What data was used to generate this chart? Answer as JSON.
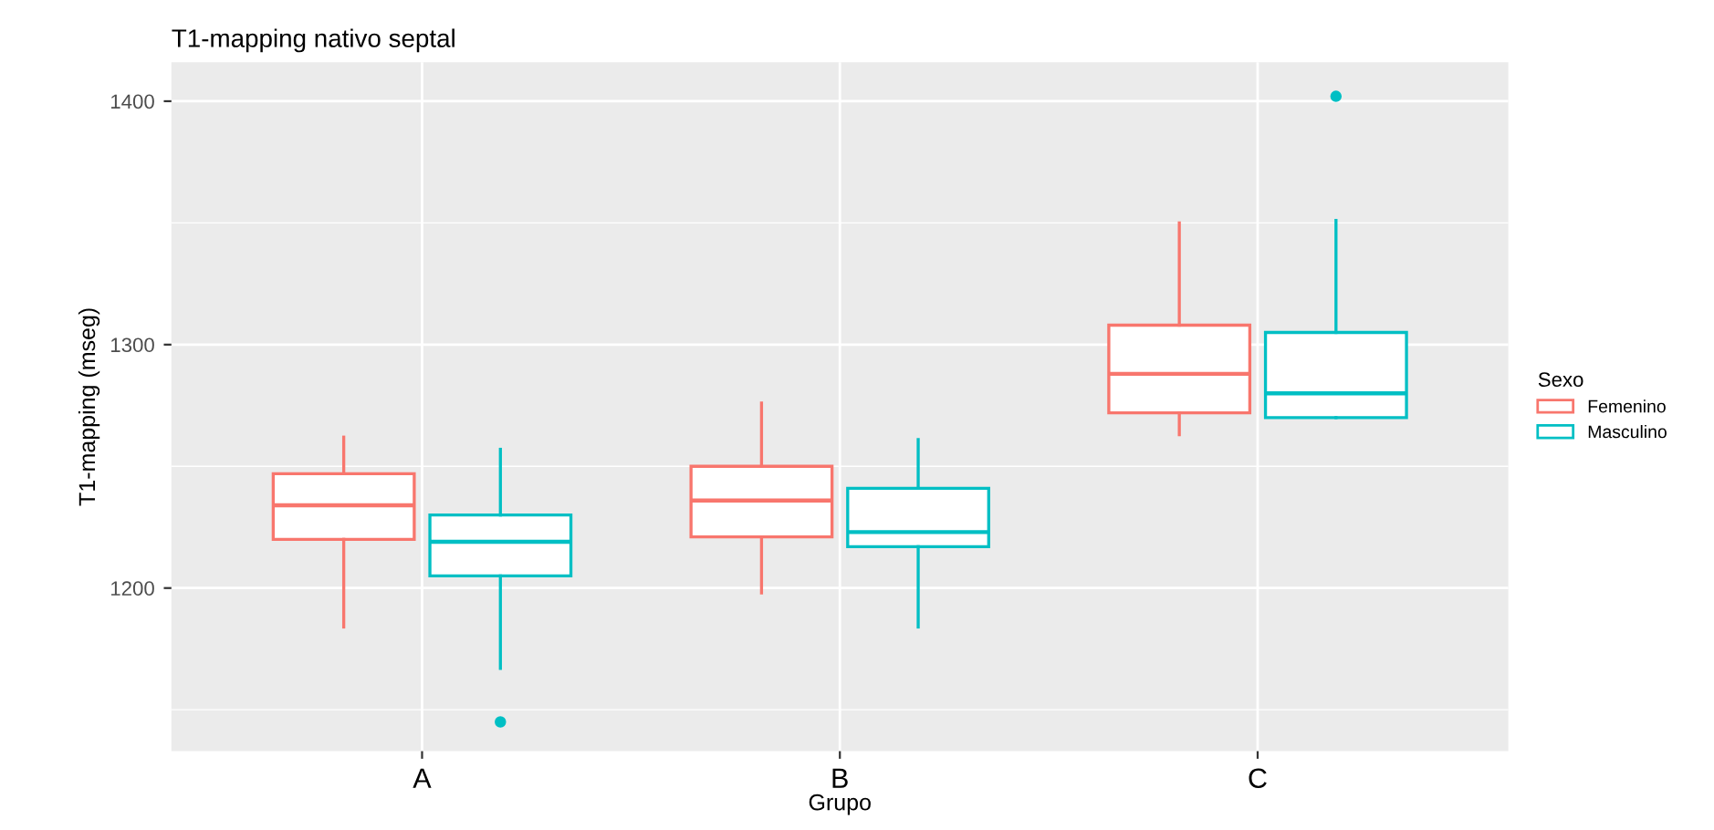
{
  "chart_data": {
    "type": "box",
    "title": "T1-mapping nativo septal",
    "xlabel": "Grupo",
    "ylabel": "T1-mapping (mseg)",
    "legend_title": "Sexo",
    "categories": [
      "A",
      "B",
      "C"
    ],
    "ylim": [
      1133,
      1416
    ],
    "yticks": [
      1200,
      1300,
      1400
    ],
    "grid": true,
    "legend": "right",
    "series": [
      {
        "name": "Femenino",
        "color": "#f8766d",
        "boxes": [
          {
            "low": 1184,
            "q1": 1220,
            "median": 1234,
            "q3": 1247,
            "high": 1262
          },
          {
            "low": 1198,
            "q1": 1221,
            "median": 1236,
            "q3": 1250,
            "high": 1276
          },
          {
            "low": 1263,
            "q1": 1272,
            "median": 1288,
            "q3": 1308,
            "high": 1350
          }
        ]
      },
      {
        "name": "Masculino",
        "color": "#00bfc4",
        "boxes": [
          {
            "low": 1167,
            "q1": 1205,
            "median": 1219,
            "q3": 1230,
            "high": 1257,
            "outliers": [
              1145
            ]
          },
          {
            "low": 1184,
            "q1": 1217,
            "median": 1223,
            "q3": 1241,
            "high": 1261
          },
          {
            "low": 1270,
            "q1": 1270,
            "median": 1280,
            "q3": 1305,
            "high": 1351,
            "outliers": [
              1402
            ]
          }
        ]
      }
    ]
  }
}
